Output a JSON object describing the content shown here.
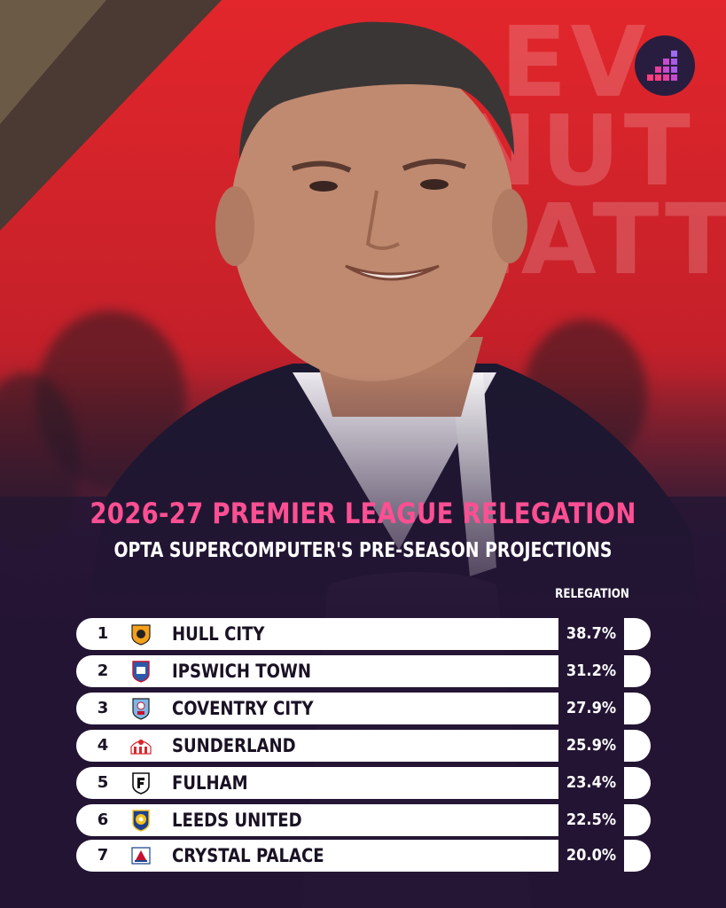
{
  "header": {
    "title": "2026-27 PREMIER LEAGUE RELEGATION",
    "subtitle": "OPTA SUPERCOMPUTER'S PRE-SEASON PROJECTIONS",
    "column_label": "RELEGATION"
  },
  "background": {
    "banner_lines": [
      "EV",
      "NUT",
      "MATT"
    ],
    "accent_color": "#ff4f93",
    "panel_color": "#231433"
  },
  "logo": {
    "icon": "opta-stairs-logo-icon"
  },
  "table": {
    "rows": [
      {
        "position": "1",
        "team": "HULL CITY",
        "relegation": "38.7%",
        "crest_icon": "hull-city-crest-icon",
        "crest_color": "#f5a01a"
      },
      {
        "position": "2",
        "team": "IPSWICH TOWN",
        "relegation": "31.2%",
        "crest_icon": "ipswich-town-crest-icon",
        "crest_color": "#2b5aa8"
      },
      {
        "position": "3",
        "team": "COVENTRY CITY",
        "relegation": "27.9%",
        "crest_icon": "coventry-city-crest-icon",
        "crest_color": "#7fb6e6"
      },
      {
        "position": "4",
        "team": "SUNDERLAND",
        "relegation": "25.9%",
        "crest_icon": "sunderland-crest-icon",
        "crest_color": "#d8262c"
      },
      {
        "position": "5",
        "team": "FULHAM",
        "relegation": "23.4%",
        "crest_icon": "fulham-crest-icon",
        "crest_color": "#111111"
      },
      {
        "position": "6",
        "team": "LEEDS UNITED",
        "relegation": "22.5%",
        "crest_icon": "leeds-united-crest-icon",
        "crest_color": "#f4c21a"
      },
      {
        "position": "7",
        "team": "CRYSTAL PALACE",
        "relegation": "20.0%",
        "crest_icon": "crystal-palace-crest-icon",
        "crest_color": "#1b458f"
      }
    ]
  }
}
